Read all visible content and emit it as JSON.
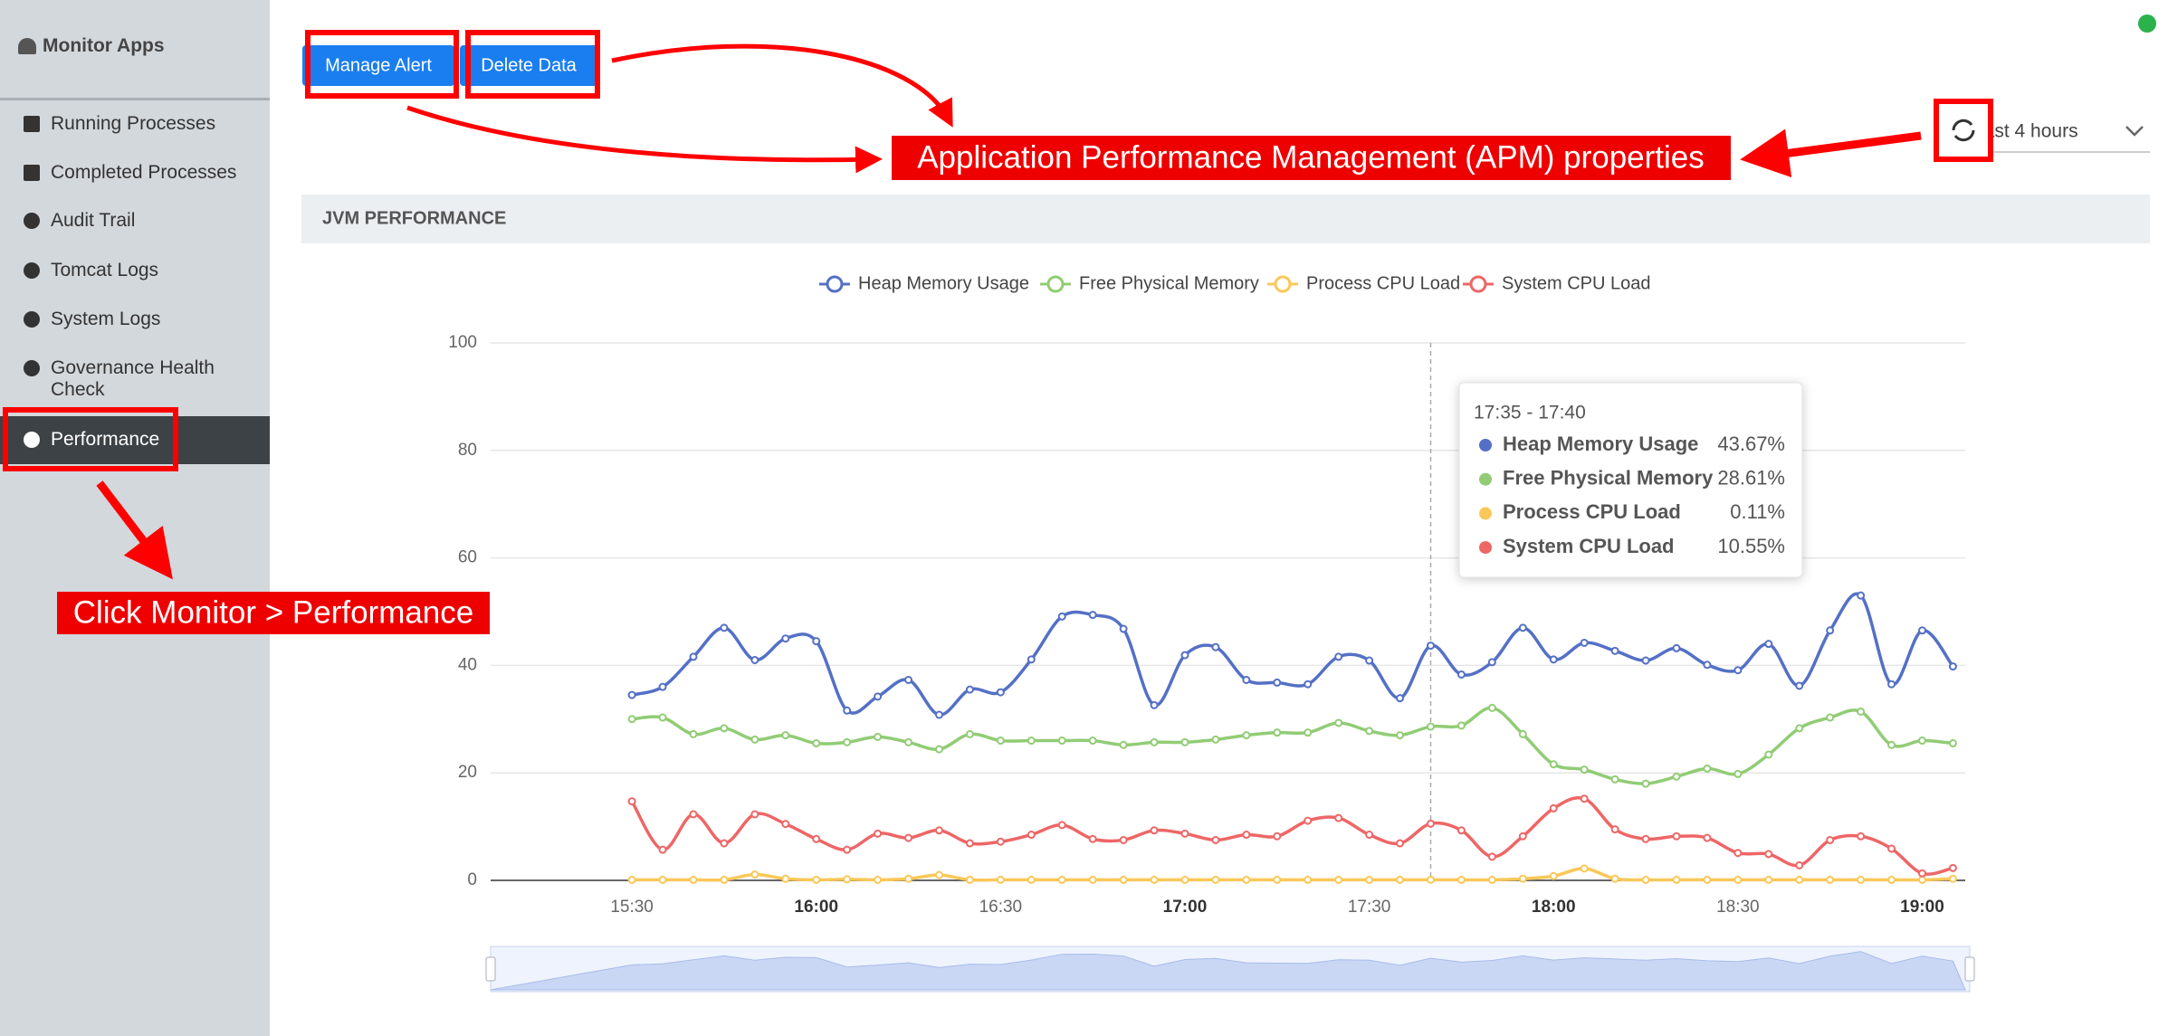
{
  "sidebar": {
    "title": "Monitor Apps",
    "items": [
      "Running Processes",
      "Completed Processes",
      "Audit Trail",
      "Tomcat Logs",
      "System Logs",
      "Governance Health Check",
      "Performance"
    ]
  },
  "toolbar": {
    "buttons": [
      "Manage Alert",
      "Delete Data"
    ],
    "time_range": "Last 4 hours"
  },
  "annotations": [
    "Application Performance Management (APM) properties",
    "Click Monitor > Performance"
  ],
  "panel": {
    "title": "JVM PERFORMANCE"
  },
  "chart_data": {
    "type": "line",
    "x": [
      "15:30",
      "15:35",
      "15:40",
      "15:45",
      "15:50",
      "15:55",
      "16:00",
      "16:05",
      "16:10",
      "16:15",
      "16:20",
      "16:25",
      "16:30",
      "16:35",
      "16:40",
      "16:45",
      "16:50",
      "16:55",
      "17:00",
      "17:05",
      "17:10",
      "17:15",
      "17:20",
      "17:25",
      "17:30",
      "17:35",
      "17:40",
      "17:45",
      "17:50",
      "17:55",
      "18:00",
      "18:05",
      "18:10",
      "18:15",
      "18:20",
      "18:25",
      "18:30",
      "18:35",
      "18:40",
      "18:45",
      "18:50",
      "18:55",
      "19:00",
      "19:05"
    ],
    "xlim": [
      "15:07",
      "19:07"
    ],
    "xticks": [
      "15:30",
      "16:00",
      "16:30",
      "17:00",
      "17:30",
      "18:00",
      "18:30",
      "19:00"
    ],
    "ylim": [
      0,
      100
    ],
    "yticks": [
      0,
      20,
      40,
      60,
      80,
      100
    ],
    "grid": true,
    "series": [
      {
        "name": "Heap Memory Usage",
        "color": "#5470c6",
        "values": [
          34.5,
          36,
          41.6,
          47,
          41,
          45,
          44.5,
          31.6,
          34.2,
          37.3,
          30.8,
          35.5,
          35,
          41.1,
          49.1,
          49.4,
          46.8,
          32.6,
          41.9,
          43.4,
          37.3,
          36.8,
          36.5,
          41.6,
          40.9,
          33.9,
          43.67,
          38.3,
          40.6,
          47,
          41.1,
          44.2,
          42.7,
          40.9,
          43.2,
          40.1,
          39.1,
          44,
          36.2,
          46.5,
          53,
          36.5,
          46.5,
          39.8
        ]
      },
      {
        "name": "Free Physical Memory",
        "color": "#91cc75",
        "values": [
          30,
          30.3,
          27.2,
          28.3,
          26.2,
          27,
          25.5,
          25.7,
          26.7,
          25.7,
          24.4,
          27.2,
          26,
          26,
          26,
          26,
          25.2,
          25.7,
          25.7,
          26.2,
          27,
          27.5,
          27.5,
          29.3,
          27.8,
          27,
          28.61,
          28.8,
          32.1,
          27.2,
          21.6,
          20.6,
          18.8,
          18,
          19.3,
          20.8,
          19.8,
          23.4,
          28.3,
          30.3,
          31.4,
          25.2,
          26,
          25.5
        ]
      },
      {
        "name": "Process CPU Load",
        "color": "#fac858",
        "values": [
          0.1,
          0.1,
          0.1,
          0.1,
          1.1,
          0.3,
          0.1,
          0.2,
          0.1,
          0.3,
          1,
          0.1,
          0.1,
          0.1,
          0.1,
          0.1,
          0.1,
          0.1,
          0.1,
          0.1,
          0.1,
          0.1,
          0.1,
          0.1,
          0.1,
          0.1,
          0.11,
          0.1,
          0.1,
          0.3,
          0.8,
          2.2,
          0.3,
          0.1,
          0.1,
          0.1,
          0.1,
          0.1,
          0.1,
          0.1,
          0.1,
          0.1,
          0.1,
          0.3
        ]
      },
      {
        "name": "System CPU Load",
        "color": "#ee6666",
        "values": [
          14.7,
          5.7,
          12.3,
          6.9,
          12.3,
          10.5,
          7.7,
          5.7,
          8.7,
          7.9,
          9.3,
          6.9,
          7.2,
          8.5,
          10.3,
          7.7,
          7.5,
          9.3,
          8.7,
          7.5,
          8.5,
          8.2,
          11.1,
          11.6,
          8.5,
          6.9,
          10.55,
          9.3,
          4.4,
          8.2,
          13.4,
          15.2,
          9.5,
          7.7,
          8.2,
          7.9,
          5.1,
          4.9,
          2.8,
          7.5,
          8.2,
          5.9,
          1.3,
          2.3
        ]
      }
    ],
    "tooltip": {
      "title": "17:35 - 17:40",
      "value_labels": [
        "43.67%",
        "28.61%",
        "0.11%",
        "10.55%"
      ]
    }
  }
}
